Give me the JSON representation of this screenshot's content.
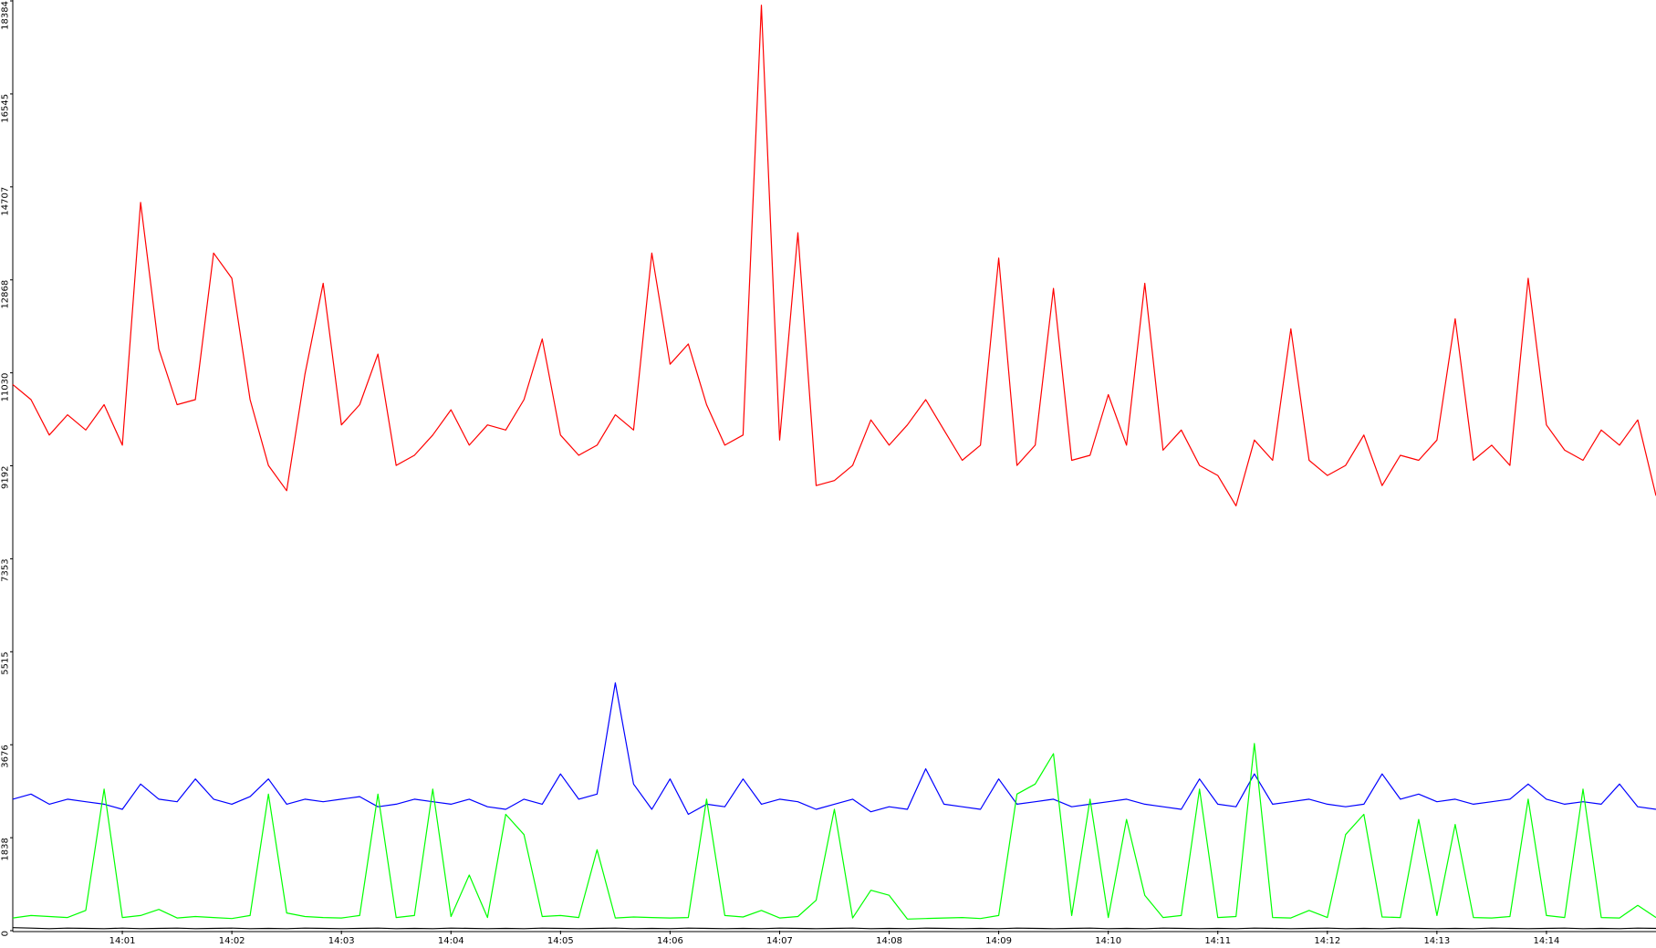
{
  "chart_data": {
    "type": "line",
    "categories": [
      null,
      null,
      null,
      null,
      null,
      null,
      "14:01",
      null,
      null,
      null,
      null,
      null,
      "14:02",
      null,
      null,
      null,
      null,
      null,
      "14:03",
      null,
      null,
      null,
      null,
      null,
      "14:04",
      null,
      null,
      null,
      null,
      null,
      "14:05",
      null,
      null,
      null,
      null,
      null,
      "14:06",
      null,
      null,
      null,
      null,
      null,
      "14:07",
      null,
      null,
      null,
      null,
      null,
      "14:08",
      null,
      null,
      null,
      null,
      null,
      "14:09",
      null,
      null,
      null,
      null,
      null,
      "14:10",
      null,
      null,
      null,
      null,
      null,
      "14:11",
      null,
      null,
      null,
      null,
      null,
      "14:12",
      null,
      null,
      null,
      null,
      null,
      "14:13",
      null,
      null,
      null,
      null,
      null,
      "14:14",
      null,
      null,
      null,
      null,
      null,
      null
    ],
    "series": [
      {
        "color": "#ff0000",
        "values": [
          10800,
          10500,
          9800,
          10200,
          9900,
          10400,
          9600,
          14400,
          11500,
          10400,
          10500,
          13400,
          12900,
          10500,
          9200,
          8700,
          11000,
          12800,
          10000,
          10400,
          11400,
          9200,
          9400,
          9800,
          10300,
          9600,
          10000,
          9900,
          10500,
          11700,
          9800,
          9400,
          9600,
          10200,
          9900,
          13400,
          11200,
          11600,
          10400,
          9600,
          9800,
          18300,
          9700,
          13800,
          8800,
          8900,
          9200,
          10100,
          9600,
          10000,
          10500,
          9900,
          9300,
          9600,
          13300,
          9200,
          9600,
          12700,
          9300,
          9400,
          10600,
          9600,
          12800,
          9500,
          9900,
          9200,
          9000,
          8400,
          9700,
          9300,
          11900,
          9300,
          9000,
          9200,
          9800,
          8800,
          9400,
          9300,
          9700,
          12100,
          9300,
          9600,
          9200,
          12900,
          10000,
          9500,
          9300,
          9900,
          9600,
          10100,
          8600
        ]
      },
      {
        "color": "#0000ff",
        "values": [
          2600,
          2700,
          2500,
          2600,
          2550,
          2500,
          2400,
          2900,
          2600,
          2550,
          3000,
          2600,
          2500,
          2650,
          3000,
          2500,
          2600,
          2550,
          2600,
          2650,
          2450,
          2500,
          2600,
          2550,
          2500,
          2600,
          2450,
          2400,
          2600,
          2500,
          3100,
          2600,
          2700,
          4900,
          2900,
          2400,
          3000,
          2300,
          2500,
          2450,
          3000,
          2500,
          2600,
          2550,
          2400,
          2500,
          2600,
          2350,
          2450,
          2400,
          3200,
          2500,
          2450,
          2400,
          3000,
          2500,
          2550,
          2600,
          2450,
          2500,
          2550,
          2600,
          2500,
          2450,
          2400,
          3000,
          2500,
          2450,
          3100,
          2500,
          2550,
          2600,
          2500,
          2450,
          2500,
          3100,
          2600,
          2700,
          2550,
          2600,
          2500,
          2550,
          2600,
          2900,
          2600,
          2500,
          2550,
          2500,
          2900,
          2450,
          2400
        ]
      },
      {
        "color": "#00ff00",
        "values": [
          250,
          300,
          280,
          260,
          400,
          2800,
          260,
          300,
          420,
          250,
          280,
          260,
          240,
          300,
          2700,
          350,
          280,
          260,
          250,
          300,
          2700,
          260,
          300,
          2800,
          280,
          1100,
          260,
          2300,
          1900,
          280,
          300,
          260,
          1600,
          250,
          270,
          260,
          250,
          260,
          2600,
          300,
          270,
          400,
          250,
          280,
          600,
          2400,
          250,
          800,
          700,
          230,
          240,
          250,
          260,
          240,
          300,
          2700,
          2900,
          3500,
          300,
          2600,
          260,
          2200,
          700,
          260,
          300,
          2800,
          260,
          280,
          3700,
          260,
          250,
          400,
          260,
          1900,
          2300,
          270,
          260,
          2200,
          300,
          2100,
          260,
          250,
          280,
          2600,
          300,
          260,
          2800,
          260,
          250,
          500,
          260
        ]
      },
      {
        "color": "#000000",
        "values": [
          60,
          50,
          40,
          50,
          45,
          40,
          50,
          40,
          45,
          50,
          40,
          45,
          50,
          40,
          45,
          40,
          50,
          45,
          40,
          45,
          50,
          40,
          45,
          40,
          50,
          45,
          40,
          45,
          40,
          50,
          45,
          40,
          45,
          50,
          40,
          45,
          40,
          50,
          45,
          40,
          45,
          40,
          50,
          45,
          40,
          45,
          50,
          40,
          45,
          40,
          50,
          45,
          40,
          45,
          40,
          50,
          45,
          40,
          45,
          50,
          40,
          45,
          40,
          50,
          45,
          40,
          45,
          40,
          50,
          45,
          40,
          45,
          50,
          40,
          45,
          40,
          50,
          45,
          40,
          45,
          40,
          50,
          45,
          40,
          45,
          50,
          40,
          45,
          40,
          50,
          45
        ]
      }
    ],
    "ylim": [
      0,
      18384
    ],
    "yticks": [
      0,
      1838,
      3676,
      5515,
      7353,
      9192,
      11030,
      12868,
      14707,
      16545,
      18384
    ]
  }
}
